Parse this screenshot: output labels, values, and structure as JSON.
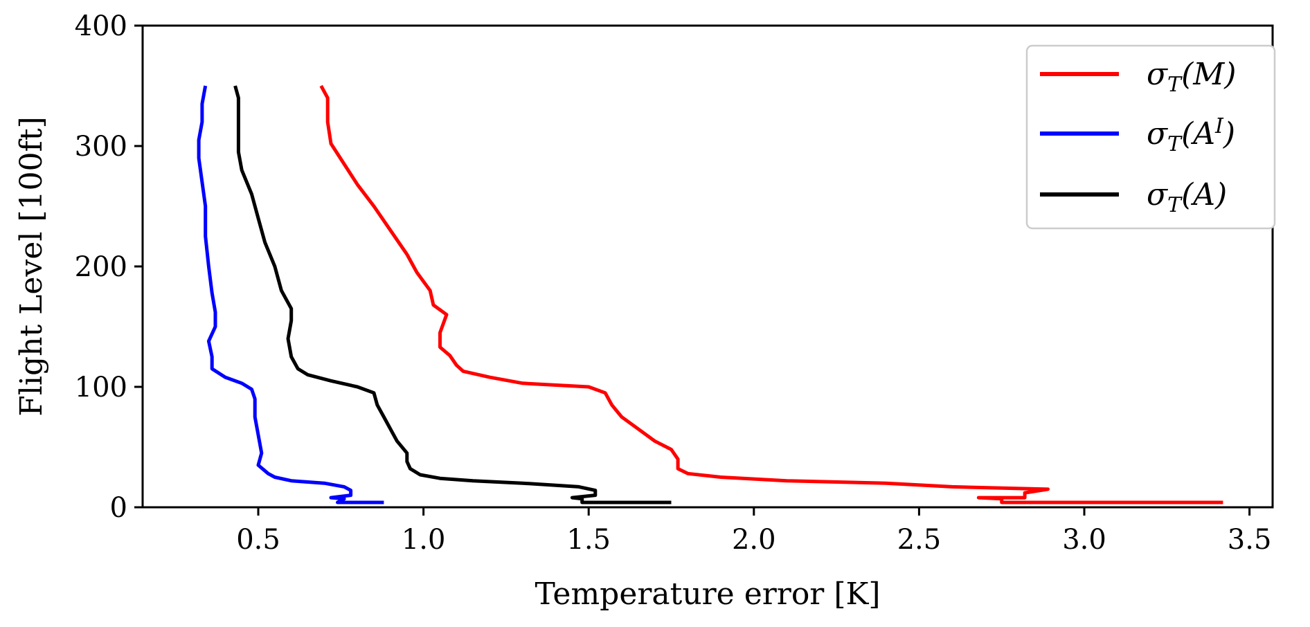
{
  "chart_data": {
    "type": "line",
    "title": "",
    "xlabel": "Temperature error [K]",
    "ylabel": "Flight Level [100ft]",
    "xlim": [
      0.15,
      3.57
    ],
    "ylim": [
      0,
      400
    ],
    "x_ticks": [
      0.5,
      1.0,
      1.5,
      2.0,
      2.5,
      3.0,
      3.5
    ],
    "x_tick_labels": [
      "0.5",
      "1.0",
      "1.5",
      "2.0",
      "2.5",
      "3.0",
      "3.5"
    ],
    "y_ticks": [
      0,
      100,
      200,
      300,
      400
    ],
    "y_tick_labels": [
      "0",
      "100",
      "200",
      "300",
      "400"
    ],
    "grid": false,
    "legend_position": "top-right",
    "series": [
      {
        "name": "σT(M)",
        "legend_main": "σ",
        "legend_sub": "T",
        "legend_arg": "(M)",
        "legend_sup": "",
        "color": "#ff0000",
        "points": [
          [
            3.42,
            4
          ],
          [
            2.75,
            4
          ],
          [
            2.75,
            7
          ],
          [
            2.68,
            8
          ],
          [
            2.82,
            8
          ],
          [
            2.82,
            12
          ],
          [
            2.89,
            15
          ],
          [
            2.6,
            17
          ],
          [
            2.4,
            20
          ],
          [
            2.1,
            22
          ],
          [
            1.9,
            25
          ],
          [
            1.8,
            28
          ],
          [
            1.77,
            32
          ],
          [
            1.77,
            40
          ],
          [
            1.75,
            48
          ],
          [
            1.7,
            55
          ],
          [
            1.65,
            65
          ],
          [
            1.6,
            75
          ],
          [
            1.57,
            85
          ],
          [
            1.55,
            95
          ],
          [
            1.5,
            100
          ],
          [
            1.3,
            103
          ],
          [
            1.2,
            108
          ],
          [
            1.12,
            113
          ],
          [
            1.1,
            118
          ],
          [
            1.08,
            126
          ],
          [
            1.05,
            133
          ],
          [
            1.05,
            145
          ],
          [
            1.07,
            160
          ],
          [
            1.03,
            168
          ],
          [
            1.02,
            180
          ],
          [
            0.98,
            195
          ],
          [
            0.95,
            210
          ],
          [
            0.9,
            230
          ],
          [
            0.85,
            250
          ],
          [
            0.8,
            268
          ],
          [
            0.76,
            285
          ],
          [
            0.72,
            302
          ],
          [
            0.71,
            320
          ],
          [
            0.71,
            340
          ],
          [
            0.69,
            350
          ]
        ]
      },
      {
        "name": "σT(AI)",
        "legend_main": "σ",
        "legend_sub": "T",
        "legend_arg": "(A",
        "legend_sup": "I",
        "legend_close": ")",
        "color": "#0000ff",
        "points": [
          [
            0.88,
            4
          ],
          [
            0.74,
            4
          ],
          [
            0.76,
            7
          ],
          [
            0.72,
            8
          ],
          [
            0.78,
            10
          ],
          [
            0.78,
            14
          ],
          [
            0.76,
            17
          ],
          [
            0.7,
            20
          ],
          [
            0.6,
            22
          ],
          [
            0.55,
            25
          ],
          [
            0.53,
            28
          ],
          [
            0.5,
            35
          ],
          [
            0.51,
            45
          ],
          [
            0.5,
            60
          ],
          [
            0.49,
            75
          ],
          [
            0.49,
            90
          ],
          [
            0.48,
            98
          ],
          [
            0.45,
            103
          ],
          [
            0.4,
            108
          ],
          [
            0.36,
            115
          ],
          [
            0.36,
            125
          ],
          [
            0.35,
            138
          ],
          [
            0.37,
            150
          ],
          [
            0.37,
            162
          ],
          [
            0.36,
            178
          ],
          [
            0.35,
            200
          ],
          [
            0.34,
            225
          ],
          [
            0.34,
            250
          ],
          [
            0.33,
            270
          ],
          [
            0.32,
            290
          ],
          [
            0.32,
            305
          ],
          [
            0.33,
            320
          ],
          [
            0.33,
            335
          ],
          [
            0.34,
            350
          ]
        ]
      },
      {
        "name": "σT(A)",
        "legend_main": "σ",
        "legend_sub": "T",
        "legend_arg": "(A)",
        "legend_sup": "",
        "color": "#000000",
        "points": [
          [
            1.75,
            4
          ],
          [
            1.48,
            4
          ],
          [
            1.48,
            7
          ],
          [
            1.45,
            8
          ],
          [
            1.52,
            10
          ],
          [
            1.52,
            14
          ],
          [
            1.47,
            17
          ],
          [
            1.3,
            20
          ],
          [
            1.15,
            22
          ],
          [
            1.05,
            24
          ],
          [
            0.99,
            27
          ],
          [
            0.96,
            32
          ],
          [
            0.95,
            38
          ],
          [
            0.95,
            45
          ],
          [
            0.92,
            55
          ],
          [
            0.9,
            65
          ],
          [
            0.88,
            75
          ],
          [
            0.86,
            85
          ],
          [
            0.85,
            95
          ],
          [
            0.8,
            100
          ],
          [
            0.72,
            105
          ],
          [
            0.65,
            110
          ],
          [
            0.62,
            115
          ],
          [
            0.6,
            125
          ],
          [
            0.59,
            140
          ],
          [
            0.6,
            155
          ],
          [
            0.6,
            165
          ],
          [
            0.57,
            180
          ],
          [
            0.55,
            200
          ],
          [
            0.52,
            220
          ],
          [
            0.5,
            240
          ],
          [
            0.48,
            260
          ],
          [
            0.45,
            280
          ],
          [
            0.44,
            295
          ],
          [
            0.44,
            310
          ],
          [
            0.44,
            325
          ],
          [
            0.44,
            340
          ],
          [
            0.43,
            350
          ]
        ]
      }
    ]
  }
}
